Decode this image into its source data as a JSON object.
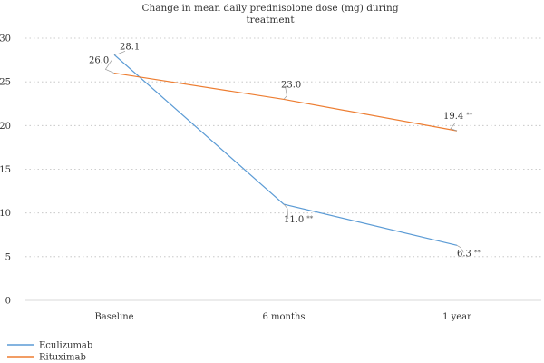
{
  "chart_data": {
    "type": "line",
    "title_lines": [
      "Change in mean daily prednisolone dose (mg) during",
      "treatment"
    ],
    "categories": [
      "Baseline",
      "6 months",
      "1 year"
    ],
    "ylim": [
      0,
      30
    ],
    "yticks": [
      "0",
      "5",
      "10",
      "15",
      "20",
      "25",
      "30"
    ],
    "grid": true,
    "legend_position": "bottom-left",
    "series": [
      {
        "name": "Eculizumab",
        "color": "#5b9bd5",
        "values": [
          28.1,
          11.0,
          6.3
        ],
        "labels": [
          "28.1",
          "11.0",
          "6.3"
        ],
        "significance": [
          "",
          "**",
          "**"
        ]
      },
      {
        "name": "Rituximab",
        "color": "#ed7d31",
        "values": [
          26.0,
          23.0,
          19.4
        ],
        "labels": [
          "26.0",
          "23.0",
          "19.4"
        ],
        "significance": [
          "",
          "",
          "**"
        ]
      }
    ]
  }
}
